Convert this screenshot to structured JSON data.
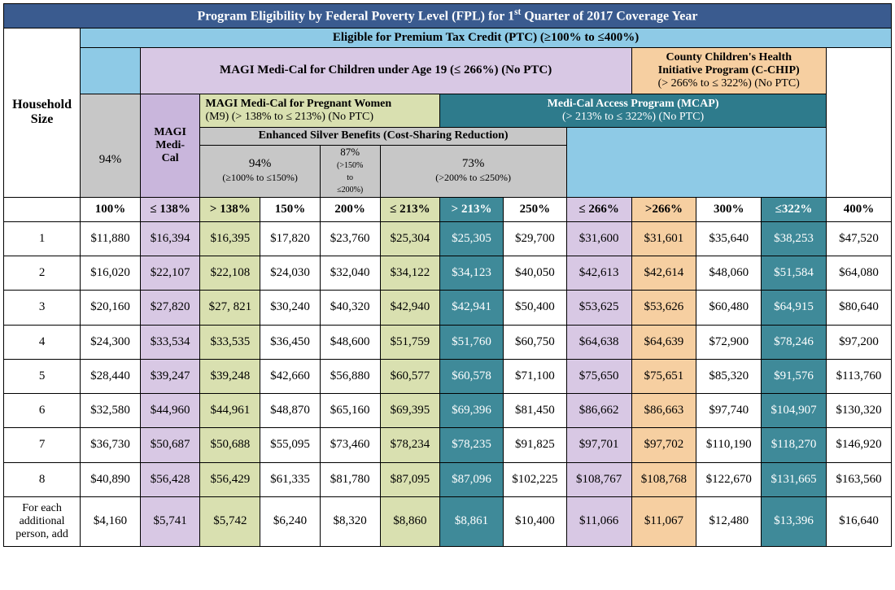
{
  "title": "Program Eligibility by Federal Poverty Level (FPL) for 1",
  "title_sup": "st",
  "title_tail": " Quarter of 2017 Coverage Year",
  "ptc": "Eligible for Premium Tax Credit (PTC) (≥100% to ≤400%)",
  "hh_label": "Household Size",
  "programs": {
    "magi_children": "MAGI Medi-Cal for Children under Age 19 (≤ 266%) (No PTC)",
    "cchip_l1": "County Children's Health",
    "cchip_l2": "Initiative Program (C-CHIP)",
    "cchip_l3": "(> 266% to ≤ 322%) (No PTC)",
    "magi_preg_l1": "MAGI Medi-Cal for Pregnant Women",
    "magi_preg_l2": "(M9) (> 138% to ≤ 213%) (No PTC)",
    "mcap_l1": "Medi-Cal Access Program (MCAP)",
    "mcap_l2": "(> 213% to ≤ 322%) (No PTC)",
    "magi_medical": "MAGI Medi-Cal",
    "enhanced_silver": "Enhanced Silver Benefits (Cost-Sharing Reduction)",
    "csr94_top": "94%",
    "csr94_l1": "94%",
    "csr94_l2": "(≥100% to ≤150%)",
    "csr87_l1": "87%",
    "csr87_l2": "(>150% to ≤200%)",
    "csr73_l1": "73%",
    "csr73_l2": "(>200% to ≤250%)"
  },
  "pct_headers": [
    "100%",
    "≤ 138%",
    "> 138%",
    "150%",
    "200%",
    "≤ 213%",
    "> 213%",
    "250%",
    "≤ 266%",
    ">266%",
    "300%",
    "≤322%",
    "400%"
  ],
  "row_labels": [
    "1",
    "2",
    "3",
    "4",
    "5",
    "6",
    "7",
    "8"
  ],
  "additional_label": "For each additional person, add",
  "rows": [
    [
      "$11,880",
      "$16,394",
      "$16,395",
      "$17,820",
      "$23,760",
      "$25,304",
      "$25,305",
      "$29,700",
      "$31,600",
      "$31,601",
      "$35,640",
      "$38,253",
      "$47,520"
    ],
    [
      "$16,020",
      "$22,107",
      "$22,108",
      "$24,030",
      "$32,040",
      "$34,122",
      "$34,123",
      "$40,050",
      "$42,613",
      "$42,614",
      "$48,060",
      "$51,584",
      "$64,080"
    ],
    [
      "$20,160",
      "$27,820",
      "$27, 821",
      "$30,240",
      "$40,320",
      "$42,940",
      "$42,941",
      "$50,400",
      "$53,625",
      "$53,626",
      "$60,480",
      "$64,915",
      "$80,640"
    ],
    [
      "$24,300",
      "$33,534",
      "$33,535",
      "$36,450",
      "$48,600",
      "$51,759",
      "$51,760",
      "$60,750",
      "$64,638",
      "$64,639",
      "$72,900",
      "$78,246",
      "$97,200"
    ],
    [
      "$28,440",
      "$39,247",
      "$39,248",
      "$42,660",
      "$56,880",
      "$60,577",
      "$60,578",
      "$71,100",
      "$75,650",
      "$75,651",
      "$85,320",
      "$91,576",
      "$113,760"
    ],
    [
      "$32,580",
      "$44,960",
      "$44,961",
      "$48,870",
      "$65,160",
      "$69,395",
      "$69,396",
      "$81,450",
      "$86,662",
      "$86,663",
      "$97,740",
      "$104,907",
      "$130,320"
    ],
    [
      "$36,730",
      "$50,687",
      "$50,688",
      "$55,095",
      "$73,460",
      "$78,234",
      "$78,235",
      "$91,825",
      "$97,701",
      "$97,702",
      "$110,190",
      "$118,270",
      "$146,920"
    ],
    [
      "$40,890",
      "$56,428",
      "$56,429",
      "$61,335",
      "$81,780",
      "$87,095",
      "$87,096",
      "$102,225",
      "$108,767",
      "$108,768",
      "$122,670",
      "$131,665",
      "$163,560"
    ]
  ],
  "additional_row": [
    "$4,160",
    "$5,741",
    "$5,742",
    "$6,240",
    "$8,320",
    "$8,860",
    "$8,861",
    "$10,400",
    "$11,066",
    "$11,067",
    "$12,480",
    "$13,396",
    "$16,640"
  ],
  "colors": {
    "title_bg": "#3a5b8f",
    "ptc_bg": "#8ecae6",
    "lavender": "#d8c8e4",
    "peach": "#f6cfa1",
    "olive": "#d9e0b0",
    "teal": "#3f8a99",
    "gray": "#c7c7c7"
  }
}
